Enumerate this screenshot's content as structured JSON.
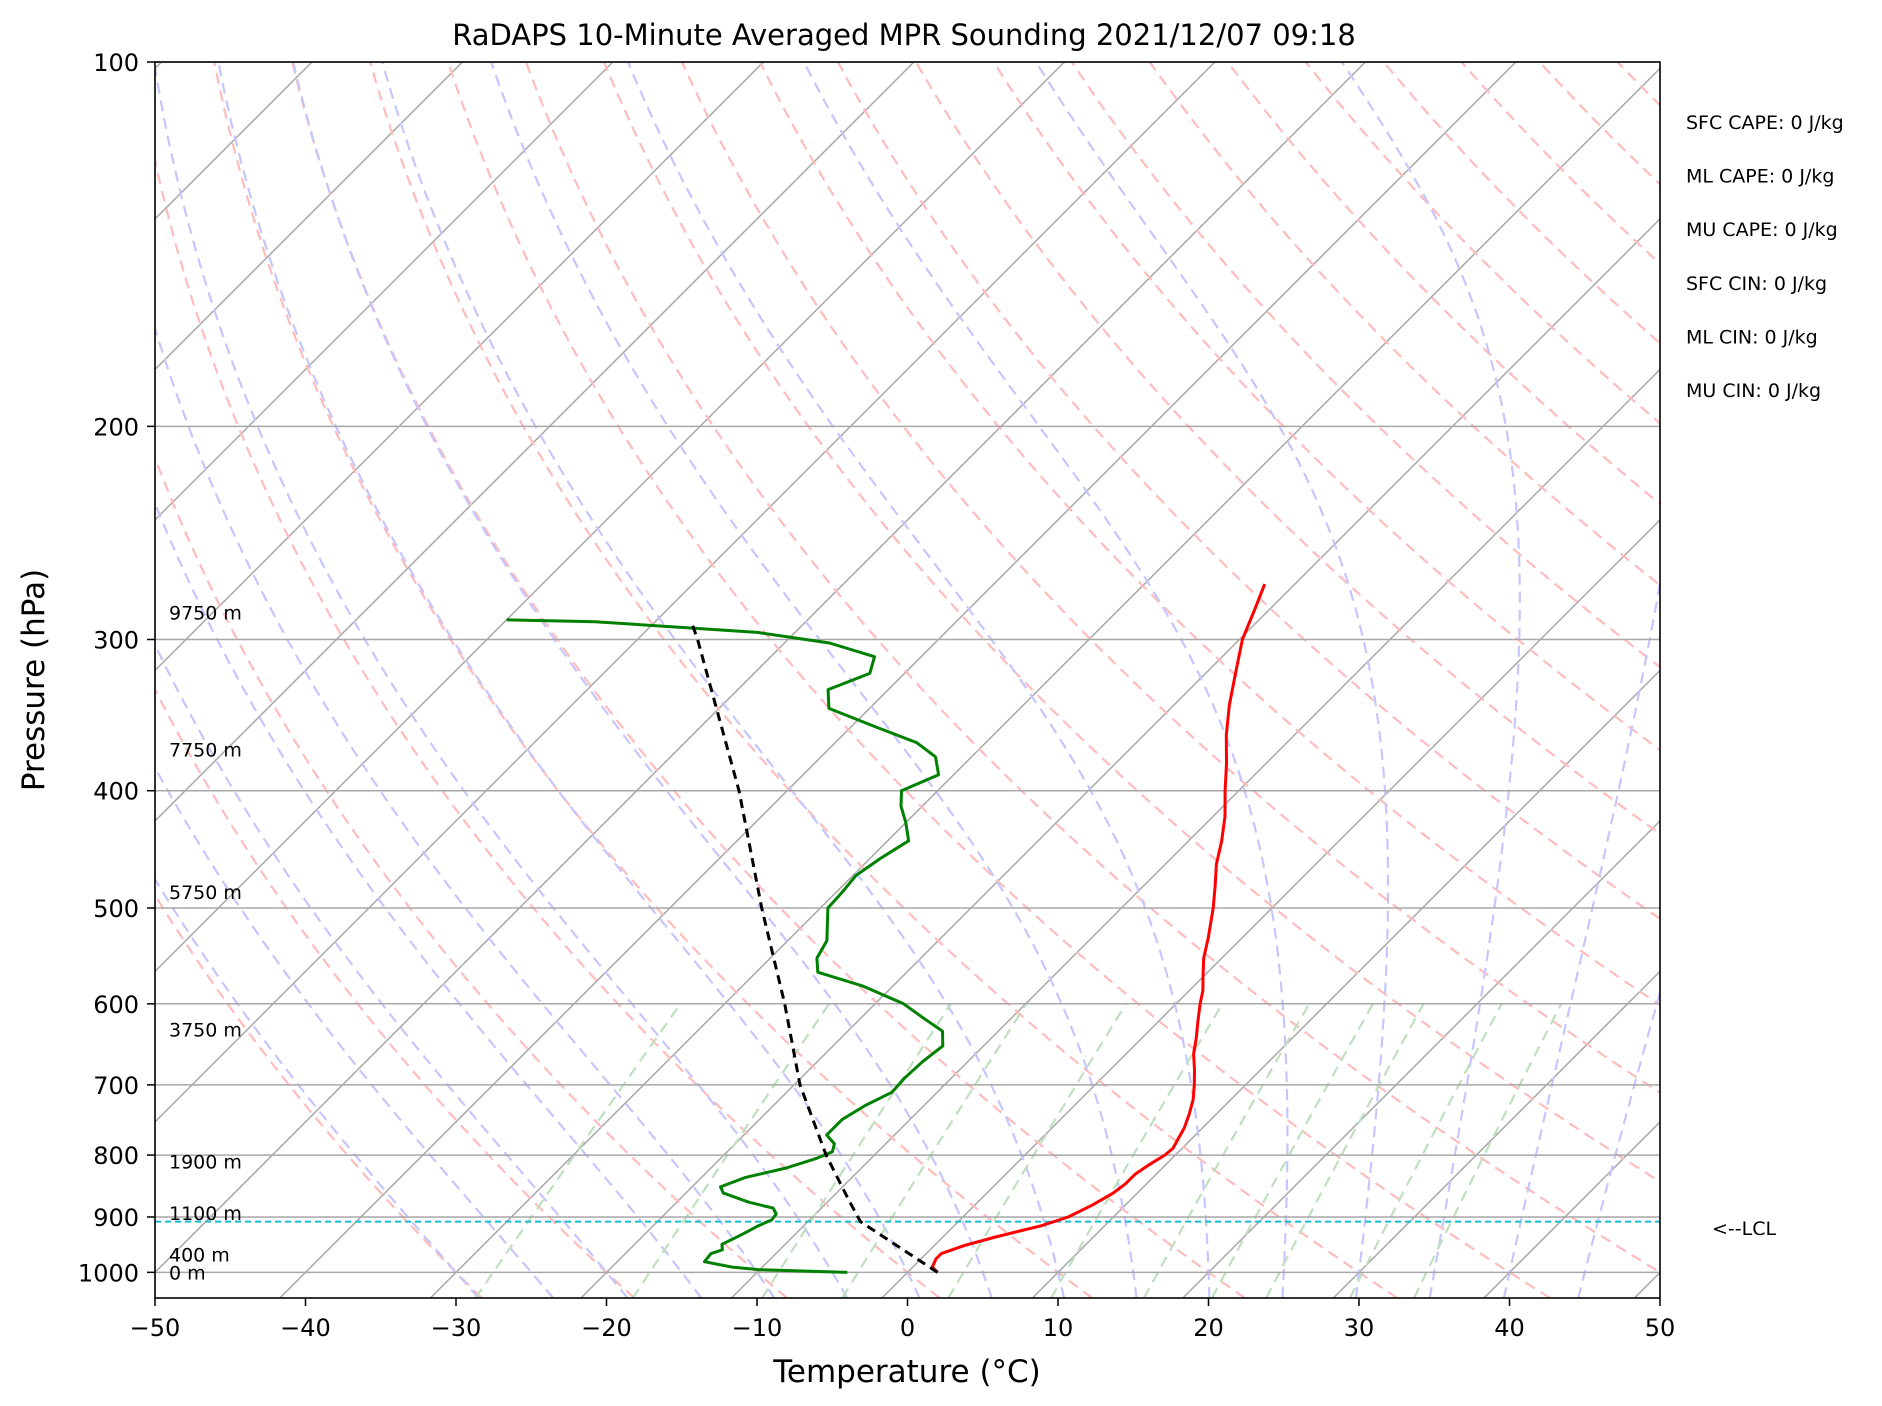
{
  "chart_data": {
    "type": "line",
    "title": "RaDAPS 10-Minute Averaged MPR Sounding 2021/12/07 09:18",
    "xlabel": "Temperature (°C)",
    "ylabel": "Pressure (hPa)",
    "xlim": [
      -50,
      50
    ],
    "ylim": [
      1050,
      100
    ],
    "y_scale": "log",
    "skew": "skew-T log-p",
    "grid": true,
    "x_ticks": [
      "−50",
      "−40",
      "−30",
      "−20",
      "−10",
      "0",
      "10",
      "20",
      "30",
      "40",
      "50"
    ],
    "y_ticks": [
      "100",
      "200",
      "300",
      "400",
      "500",
      "600",
      "700",
      "800",
      "900",
      "1000"
    ],
    "height_labels": [
      {
        "text": "9750 m",
        "p": 285
      },
      {
        "text": "7750 m",
        "p": 370
      },
      {
        "text": "5750 m",
        "p": 485
      },
      {
        "text": "3750 m",
        "p": 630
      },
      {
        "text": "1900 m",
        "p": 810
      },
      {
        "text": "1100 m",
        "p": 893
      },
      {
        "text": "400 m",
        "p": 967
      },
      {
        "text": "0 m",
        "p": 1000
      }
    ],
    "indices": [
      "SFC CAPE: 0 J/kg",
      "ML CAPE: 0 J/kg",
      "MU CAPE: 0 J/kg",
      "SFC CIN: 0 J/kg",
      "ML CIN: 0 J/kg",
      "MU CIN: 0 J/kg"
    ],
    "lcl": {
      "label": "<--LCL",
      "p": 908
    },
    "colors": {
      "temperature": "#ff0000",
      "dewpoint": "#008000",
      "parcel": "#000000",
      "lcl": "#17becf",
      "dry_adiabat": "#ffbcbc",
      "moist_adiabat": "#c6c6ff",
      "mixing_ratio": "#bfe0bf",
      "isotherm": "#a8a8a8"
    },
    "series": [
      {
        "key": "temperature",
        "points": [
          [
            1000,
            2.0
          ],
          [
            990,
            1.3
          ],
          [
            975,
            1.0
          ],
          [
            965,
            1.0
          ],
          [
            950,
            2.0
          ],
          [
            935,
            3.5
          ],
          [
            915,
            5.8
          ],
          [
            900,
            7.0
          ],
          [
            880,
            7.8
          ],
          [
            860,
            8.4
          ],
          [
            845,
            8.6
          ],
          [
            830,
            8.6
          ],
          [
            815,
            8.9
          ],
          [
            800,
            9.3
          ],
          [
            790,
            9.4
          ],
          [
            775,
            9.1
          ],
          [
            760,
            8.8
          ],
          [
            740,
            8.2
          ],
          [
            720,
            7.5
          ],
          [
            700,
            6.6
          ],
          [
            680,
            5.6
          ],
          [
            660,
            4.5
          ],
          [
            640,
            3.6
          ],
          [
            620,
            2.6
          ],
          [
            600,
            1.6
          ],
          [
            585,
            0.9
          ],
          [
            570,
            0.0
          ],
          [
            550,
            -1.2
          ],
          [
            530,
            -2.2
          ],
          [
            500,
            -3.9
          ],
          [
            480,
            -5.2
          ],
          [
            460,
            -6.6
          ],
          [
            440,
            -7.8
          ],
          [
            420,
            -9.2
          ],
          [
            400,
            -10.9
          ],
          [
            380,
            -12.6
          ],
          [
            360,
            -14.5
          ],
          [
            340,
            -16.3
          ],
          [
            320,
            -18.0
          ],
          [
            300,
            -19.8
          ],
          [
            283,
            -21.0
          ],
          [
            270,
            -22.0
          ]
        ]
      },
      {
        "key": "dewpoint",
        "points": [
          [
            1000,
            -4.0
          ],
          [
            998,
            -6.5
          ],
          [
            995,
            -10.0
          ],
          [
            990,
            -12.0
          ],
          [
            980,
            -14.2
          ],
          [
            965,
            -14.3
          ],
          [
            958,
            -13.8
          ],
          [
            948,
            -14.2
          ],
          [
            938,
            -13.8
          ],
          [
            930,
            -13.5
          ],
          [
            915,
            -13.0
          ],
          [
            905,
            -12.5
          ],
          [
            895,
            -12.6
          ],
          [
            885,
            -13.2
          ],
          [
            875,
            -15.2
          ],
          [
            860,
            -17.5
          ],
          [
            850,
            -18.1
          ],
          [
            835,
            -17.1
          ],
          [
            820,
            -15.0
          ],
          [
            805,
            -13.6
          ],
          [
            795,
            -13.0
          ],
          [
            783,
            -13.4
          ],
          [
            770,
            -14.5
          ],
          [
            748,
            -14.5
          ],
          [
            728,
            -13.9
          ],
          [
            710,
            -13.0
          ],
          [
            690,
            -13.1
          ],
          [
            670,
            -13.0
          ],
          [
            650,
            -12.7
          ],
          [
            632,
            -13.7
          ],
          [
            616,
            -15.9
          ],
          [
            600,
            -18.1
          ],
          [
            580,
            -22.0
          ],
          [
            565,
            -25.9
          ],
          [
            550,
            -26.9
          ],
          [
            532,
            -27.4
          ],
          [
            515,
            -28.5
          ],
          [
            500,
            -29.5
          ],
          [
            485,
            -29.6
          ],
          [
            470,
            -29.8
          ],
          [
            455,
            -29.3
          ],
          [
            440,
            -28.6
          ],
          [
            425,
            -30.0
          ],
          [
            412,
            -31.4
          ],
          [
            400,
            -32.4
          ],
          [
            388,
            -31.0
          ],
          [
            375,
            -32.4
          ],
          [
            365,
            -34.6
          ],
          [
            355,
            -38.1
          ],
          [
            342,
            -42.7
          ],
          [
            330,
            -44.0
          ],
          [
            320,
            -42.3
          ],
          [
            310,
            -43.1
          ],
          [
            302,
            -47.0
          ],
          [
            296,
            -52.5
          ],
          [
            290,
            -64.0
          ],
          [
            289,
            -70.0
          ]
        ]
      },
      {
        "key": "parcel",
        "points": [
          [
            1000,
            2.0
          ],
          [
            908,
            -6.5
          ],
          [
            870,
            -8.8
          ],
          [
            800,
            -13.2
          ],
          [
            700,
            -19.6
          ],
          [
            600,
            -26.0
          ],
          [
            500,
            -33.9
          ],
          [
            400,
            -43.2
          ],
          [
            300,
            -56.0
          ],
          [
            290,
            -57.6
          ]
        ]
      }
    ]
  }
}
